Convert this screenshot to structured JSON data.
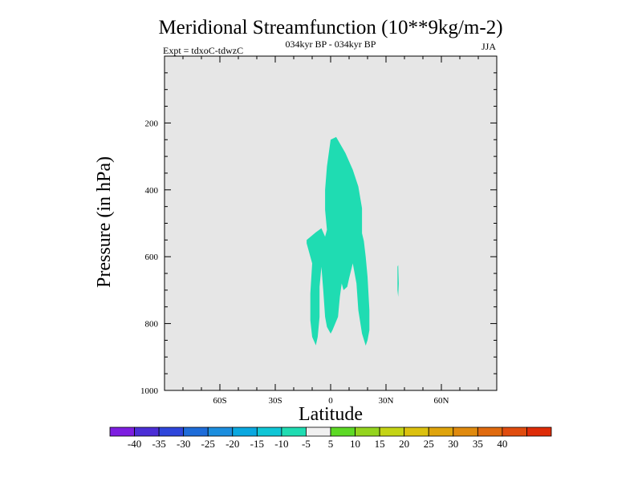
{
  "chart_data": {
    "type": "contour",
    "title": "Meridional Streamfunction (10**9kg/m-2)",
    "subtitle_center": "034kyr BP - 034kyr BP",
    "subtitle_left": "Expt = tdxoC-tdwzC",
    "subtitle_right": "JJA",
    "xlabel": "Latitude",
    "ylabel": "Pressure (in hPa)",
    "xlim": [
      -90,
      90
    ],
    "ylim": [
      1000,
      0
    ],
    "x_ticks": [
      {
        "value": -60,
        "label": "60S"
      },
      {
        "value": -30,
        "label": "30S"
      },
      {
        "value": 0,
        "label": "0"
      },
      {
        "value": 30,
        "label": "30N"
      },
      {
        "value": 60,
        "label": "60N"
      }
    ],
    "y_ticks": [
      {
        "value": 200,
        "label": "200"
      },
      {
        "value": 400,
        "label": "400"
      },
      {
        "value": 600,
        "label": "600"
      },
      {
        "value": 800,
        "label": "800"
      },
      {
        "value": 1000,
        "label": "1000"
      }
    ],
    "background_color": "#e6e6e6",
    "contour_regions": [
      {
        "range": "-10 to -5",
        "color": "#1fdcb2",
        "polygon": [
          [
            -2,
            330
          ],
          [
            0,
            250
          ],
          [
            3,
            242
          ],
          [
            8,
            290
          ],
          [
            12,
            340
          ],
          [
            15,
            390
          ],
          [
            17,
            455
          ],
          [
            17,
            530
          ],
          [
            18,
            553
          ],
          [
            19,
            600
          ],
          [
            20,
            660
          ],
          [
            21,
            760
          ],
          [
            21,
            820
          ],
          [
            20,
            850
          ],
          [
            19,
            866
          ],
          [
            17,
            830
          ],
          [
            15,
            760
          ],
          [
            14,
            680
          ],
          [
            12,
            620
          ],
          [
            10,
            665
          ],
          [
            9,
            690
          ],
          [
            7,
            700
          ],
          [
            6,
            680
          ],
          [
            5,
            720
          ],
          [
            4,
            780
          ],
          [
            1,
            820
          ],
          [
            0,
            830
          ],
          [
            -2,
            810
          ],
          [
            -3,
            780
          ],
          [
            -4,
            700
          ],
          [
            -5,
            630
          ],
          [
            -6,
            690
          ],
          [
            -6,
            780
          ],
          [
            -7,
            840
          ],
          [
            -8,
            865
          ],
          [
            -10,
            840
          ],
          [
            -11,
            790
          ],
          [
            -11,
            710
          ],
          [
            -10,
            620
          ],
          [
            -13,
            560
          ],
          [
            -13,
            550
          ],
          [
            -8,
            527
          ],
          [
            -5,
            515
          ],
          [
            -3,
            540
          ],
          [
            -2,
            520
          ],
          [
            -3,
            460
          ],
          [
            -3,
            400
          ]
        ]
      },
      {
        "range": "-10 to -5",
        "color": "#1fdcb2",
        "polygon": [
          [
            36.2,
            630
          ],
          [
            36.6,
            625
          ],
          [
            36.9,
            680
          ],
          [
            36.6,
            720
          ],
          [
            36.2,
            700
          ]
        ]
      }
    ],
    "colorbar": {
      "colors": [
        "#7d1ee0",
        "#4b2ed6",
        "#2e46db",
        "#1e6cd9",
        "#1c8ede",
        "#0aa8e0",
        "#10c6d6",
        "#1fdcb2",
        "#f0f0f0",
        "#5dd925",
        "#94d41e",
        "#c4d415",
        "#dcc10e",
        "#dfa40c",
        "#e08a0e",
        "#e06a0e",
        "#e04c0e",
        "#de2c08"
      ],
      "labels": [
        "-40",
        "-35",
        "-30",
        "-25",
        "-20",
        "-15",
        "-10",
        "-5",
        "5",
        "10",
        "15",
        "20",
        "25",
        "30",
        "35",
        "40"
      ]
    }
  }
}
